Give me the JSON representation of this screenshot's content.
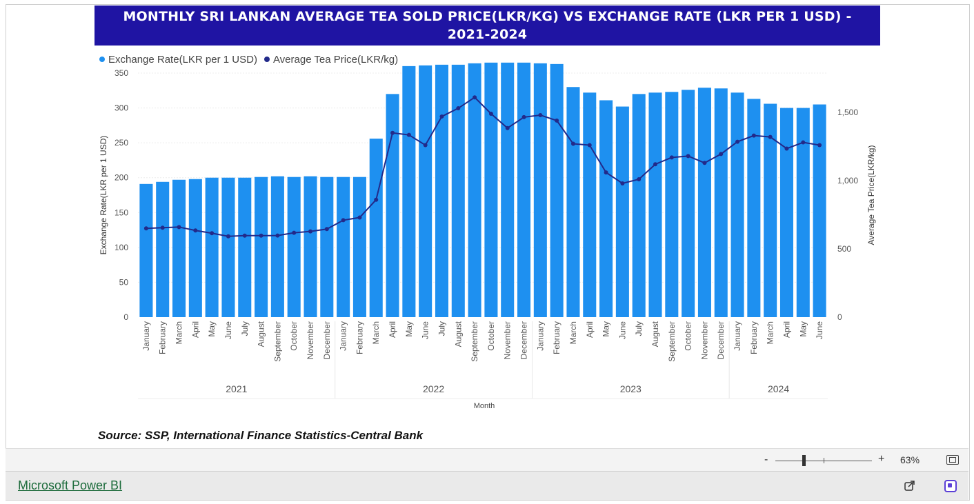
{
  "report": {
    "title": "MONTHLY SRI LANKAN AVERAGE TEA SOLD PRICE(LKR/KG) VS EXCHANGE RATE (LKR PER 1 USD) - 2021-2024",
    "source": "Source: SSP, International Finance Statistics-Central Bank"
  },
  "chart_data": {
    "type": "bar",
    "title": "MONTHLY SRI LANKAN AVERAGE TEA SOLD PRICE(LKR/KG) VS EXCHANGE RATE (LKR PER 1 USD) - 2021-2024",
    "legend_position": "top-left",
    "xlabel": "Month",
    "ylabel": "Exchange Rate(LKR per 1 USD)",
    "y2label": "Average Tea Price(LKR/kg)",
    "ylim": [
      0,
      350
    ],
    "y2lim": [
      0,
      1500
    ],
    "yticks": [
      "0",
      "50",
      "100",
      "150",
      "200",
      "250",
      "300",
      "350"
    ],
    "y2ticks": [
      "0",
      "500",
      "1,000",
      "1,500"
    ],
    "grid": true,
    "years": [
      {
        "label": "2021",
        "count": 12
      },
      {
        "label": "2022",
        "count": 12
      },
      {
        "label": "2023",
        "count": 12
      },
      {
        "label": "2024",
        "count": 6
      }
    ],
    "categories": [
      "January",
      "February",
      "March",
      "April",
      "May",
      "June",
      "July",
      "August",
      "September",
      "October",
      "November",
      "December",
      "January",
      "February",
      "March",
      "April",
      "May",
      "June",
      "July",
      "August",
      "September",
      "October",
      "November",
      "December",
      "January",
      "February",
      "March",
      "April",
      "May",
      "June",
      "July",
      "August",
      "September",
      "October",
      "November",
      "December",
      "January",
      "February",
      "March",
      "April",
      "May",
      "June"
    ],
    "series": [
      {
        "name": "Exchange Rate(LKR per 1 USD)",
        "type": "bar",
        "axis": "left",
        "color": "#1e90f0",
        "values": [
          191,
          194,
          197,
          198,
          200,
          200,
          200,
          201,
          202,
          201,
          202,
          201,
          201,
          201,
          256,
          320,
          360,
          361,
          362,
          362,
          364,
          365,
          365,
          365,
          364,
          363,
          330,
          322,
          311,
          302,
          320,
          322,
          323,
          326,
          329,
          328,
          322,
          313,
          306,
          300,
          300,
          305
        ]
      },
      {
        "name": "Average Tea Price(LKR/kg)",
        "type": "line",
        "axis": "right",
        "color": "#222a8a",
        "values": [
          650,
          655,
          660,
          635,
          615,
          592,
          597,
          597,
          598,
          618,
          628,
          645,
          710,
          730,
          860,
          1350,
          1335,
          1260,
          1470,
          1530,
          1610,
          1490,
          1385,
          1465,
          1480,
          1440,
          1270,
          1260,
          1060,
          980,
          1010,
          1120,
          1170,
          1180,
          1130,
          1195,
          1285,
          1330,
          1320,
          1235,
          1280,
          1260
        ]
      }
    ]
  },
  "toolbar": {
    "zoom_minus": "-",
    "zoom_plus": "+",
    "zoom_level": "63%",
    "zoom_fraction": 0.3
  },
  "footer": {
    "link_label": "Microsoft Power BI"
  },
  "icons": {
    "fit": "fit-to-page-icon",
    "share": "share-icon",
    "fullscreen": "fullscreen-icon"
  }
}
